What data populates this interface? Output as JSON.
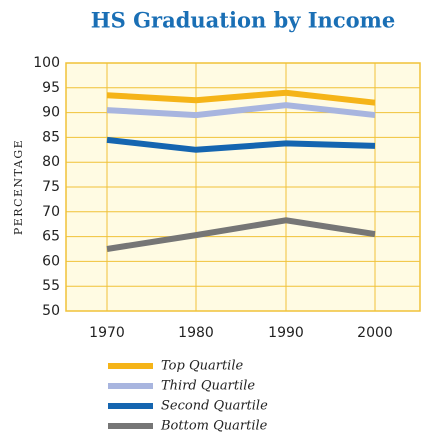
{
  "chart_data": {
    "type": "line",
    "title": "HS Graduation by Income",
    "y_label": "PERCENTAGE",
    "categories": [
      "1970",
      "1980",
      "1990",
      "2000"
    ],
    "series": [
      {
        "name": "Top Quartile",
        "color": "#f5b418",
        "values": [
          93.5,
          92.5,
          94,
          92
        ]
      },
      {
        "name": "Third Quartile",
        "color": "#a8b5df",
        "values": [
          90.5,
          89.5,
          91.5,
          89.5
        ]
      },
      {
        "name": "Second Quartile",
        "color": "#1565b0",
        "values": [
          84.5,
          82.5,
          83.8,
          83.3
        ]
      },
      {
        "name": "Bottom Quartile",
        "color": "#767676",
        "values": [
          62.5,
          65.3,
          68.3,
          65.5
        ]
      }
    ],
    "ylim": [
      50,
      100
    ],
    "yticks": [
      50,
      55,
      60,
      65,
      70,
      75,
      80,
      85,
      90,
      95,
      100
    ],
    "grid": true
  }
}
